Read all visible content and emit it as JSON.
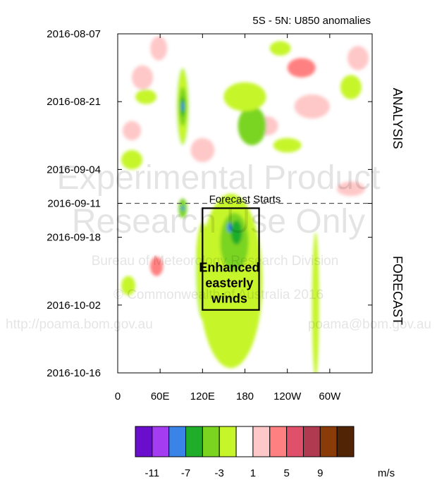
{
  "chart_data": {
    "type": "heatmap",
    "title": "5S - 5N: U850 anomalies",
    "x_ticks": [
      "0",
      "60E",
      "120E",
      "180",
      "120W",
      "60W"
    ],
    "x_tick_values": [
      0,
      60,
      120,
      180,
      240,
      300
    ],
    "xlim": [
      0,
      360
    ],
    "y_ticks": [
      "2016-08-07",
      "2016-08-21",
      "2016-09-04",
      "2016-09-11",
      "2016-09-18",
      "2016-10-02",
      "2016-10-16"
    ],
    "y_tick_values": [
      "2016-08-07",
      "2016-08-21",
      "2016-09-04",
      "2016-09-11",
      "2016-09-18",
      "2016-10-02",
      "2016-10-16"
    ],
    "ylim": [
      "2016-08-07",
      "2016-10-16"
    ],
    "forecast_start": "2016-09-11",
    "forecast_label": "Forecast Starts",
    "section_labels": [
      "ANALYSIS",
      "FORECAST"
    ],
    "annotation": {
      "lines": [
        "Enhanced",
        "easterly",
        "winds"
      ],
      "lon_range": [
        120,
        200
      ],
      "date_range": [
        "2016-09-12",
        "2016-10-03"
      ]
    },
    "colorbar": {
      "colors": [
        "#6a0dcc",
        "#a43cf2",
        "#3a84e8",
        "#1fad2a",
        "#7ad420",
        "#c6f52a",
        "#ffffff",
        "#ffc8c8",
        "#ff8080",
        "#e0506a",
        "#b03a50",
        "#8a3c08",
        "#502404"
      ],
      "labels": [
        "-11",
        "-7",
        "-3",
        "1",
        "5",
        "9"
      ],
      "unit": "m/s"
    },
    "features": [
      {
        "lon": 92,
        "date": "2016-08-22",
        "level": 6,
        "lon_w": 28,
        "days": 26
      },
      {
        "lon": 92,
        "date": "2016-08-22",
        "level": 5,
        "lon_w": 18,
        "days": 16
      },
      {
        "lon": 92,
        "date": "2016-08-22",
        "level": 4,
        "lon_w": 11,
        "days": 8
      },
      {
        "lon": 92,
        "date": "2016-08-22",
        "level": 3,
        "lon_w": 6,
        "days": 4
      },
      {
        "lon": 92,
        "date": "2016-08-22",
        "level": 2,
        "lon_w": 4,
        "days": 2
      },
      {
        "lon": 92,
        "date": "2016-09-12",
        "level": 4,
        "lon_w": 12,
        "days": 4
      },
      {
        "lon": 92,
        "date": "2016-09-12",
        "level": 2,
        "lon_w": 4,
        "days": 1
      },
      {
        "lon": 100,
        "date": "2016-10-01",
        "level": 6,
        "lon_w": 28,
        "days": 22
      },
      {
        "lon": 20,
        "date": "2016-08-27",
        "level": 7,
        "lon_w": 26,
        "days": 4
      },
      {
        "lon": 35,
        "date": "2016-08-16",
        "level": 7,
        "lon_w": 30,
        "days": 5
      },
      {
        "lon": 58,
        "date": "2016-08-10",
        "level": 7,
        "lon_w": 24,
        "days": 5
      },
      {
        "lon": 30,
        "date": "2016-09-21",
        "level": 6,
        "lon_w": 30,
        "days": 5
      },
      {
        "lon": 55,
        "date": "2016-09-24",
        "level": 8,
        "lon_w": 18,
        "days": 4
      },
      {
        "lon": 120,
        "date": "2016-08-31",
        "level": 7,
        "lon_w": 34,
        "days": 5
      },
      {
        "lon": 190,
        "date": "2016-08-12",
        "level": 6,
        "lon_w": 50,
        "days": 4
      },
      {
        "lon": 210,
        "date": "2016-08-26",
        "level": 7,
        "lon_w": 34,
        "days": 4
      },
      {
        "lon": 260,
        "date": "2016-08-14",
        "level": 8,
        "lon_w": 40,
        "days": 4
      },
      {
        "lon": 275,
        "date": "2016-08-22",
        "level": 7,
        "lon_w": 50,
        "days": 5
      },
      {
        "lon": 320,
        "date": "2016-08-30",
        "level": 6,
        "lon_w": 40,
        "days": 4
      },
      {
        "lon": 340,
        "date": "2016-08-12",
        "level": 7,
        "lon_w": 30,
        "days": 5
      },
      {
        "lon": 330,
        "date": "2016-09-08",
        "level": 7,
        "lon_w": 40,
        "days": 3
      },
      {
        "lon": 160,
        "date": "2016-09-27",
        "level": 5,
        "lon_w": 90,
        "days": 36
      },
      {
        "lon": 165,
        "date": "2016-09-19",
        "level": 4,
        "lon_w": 40,
        "days": 12
      },
      {
        "lon": 168,
        "date": "2016-09-17",
        "level": 3,
        "lon_w": 16,
        "days": 5
      },
      {
        "lon": 158,
        "date": "2016-09-16",
        "level": 2,
        "lon_w": 6,
        "days": 2
      },
      {
        "lon": 190,
        "date": "2016-08-26",
        "level": 4,
        "lon_w": 40,
        "days": 8
      },
      {
        "lon": 180,
        "date": "2016-08-20",
        "level": 5,
        "lon_w": 60,
        "days": 6
      },
      {
        "lon": 280,
        "date": "2016-10-02",
        "level": 5,
        "lon_w": 10,
        "days": 30
      },
      {
        "lon": 240,
        "date": "2016-08-30",
        "level": 5,
        "lon_w": 40,
        "days": 3
      },
      {
        "lon": 330,
        "date": "2016-08-18",
        "level": 5,
        "lon_w": 30,
        "days": 5
      },
      {
        "lon": 20,
        "date": "2016-09-02",
        "level": 5,
        "lon_w": 30,
        "days": 4
      },
      {
        "lon": 15,
        "date": "2016-09-28",
        "level": 5,
        "lon_w": 20,
        "days": 4
      },
      {
        "lon": 40,
        "date": "2016-08-20",
        "level": 5,
        "lon_w": 30,
        "days": 3
      },
      {
        "lon": 230,
        "date": "2016-08-10",
        "level": 5,
        "lon_w": 30,
        "days": 3
      },
      {
        "lon": 120,
        "date": "2016-09-25",
        "level": 5,
        "lon_w": 20,
        "days": 20
      }
    ]
  },
  "watermark": {
    "line1": "Experimental Product",
    "line2": "Research Use Only",
    "line3": "Bureau of Meteorology Research Division",
    "line4": "© Commonwealth of Australia 2016",
    "url": "http://poama.bom.gov.au",
    "email": "poama@bom.gov.au"
  }
}
